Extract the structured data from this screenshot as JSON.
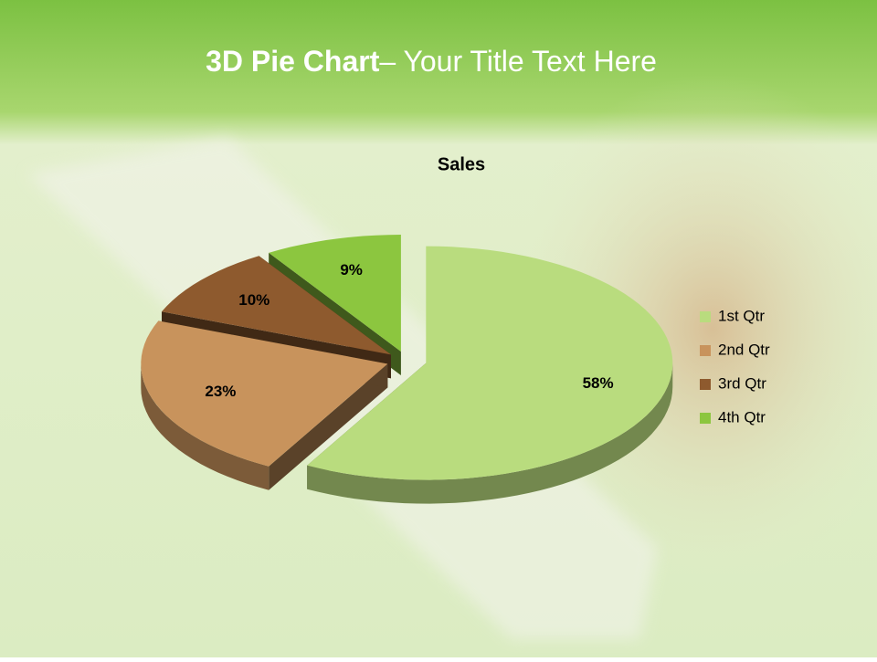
{
  "slide": {
    "title": [
      "3D Pie Chart",
      "– Your Title Text Here"
    ]
  },
  "chart_data": {
    "type": "pie",
    "title": "Sales",
    "categories": [
      "1st Qtr",
      "2nd Qtr",
      "3rd Qtr",
      "4th Qtr"
    ],
    "values": [
      58,
      23,
      10,
      9
    ],
    "value_labels": [
      "58%",
      "23%",
      "10%",
      "9%"
    ],
    "colors": [
      "#b9dc7e",
      "#c8935c",
      "#8e5a2e",
      "#8cc63f"
    ],
    "legend": "right"
  }
}
